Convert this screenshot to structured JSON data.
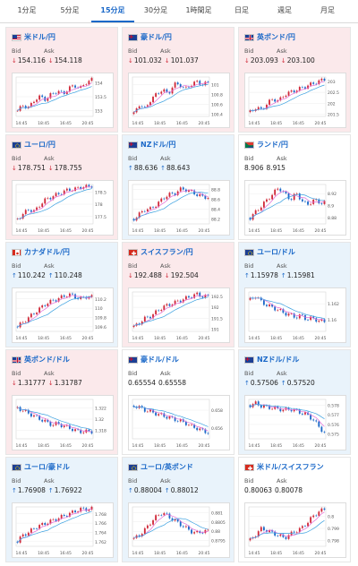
{
  "tabs": [
    {
      "label": "1分足",
      "active": false
    },
    {
      "label": "5分足",
      "active": false
    },
    {
      "label": "15分足",
      "active": true
    },
    {
      "label": "30分足",
      "active": false
    },
    {
      "label": "1時間足",
      "active": false
    },
    {
      "label": "日足",
      "active": false
    },
    {
      "label": "週足",
      "active": false
    },
    {
      "label": "月足",
      "active": false
    }
  ],
  "labels": {
    "bid": "Bid",
    "ask": "Ask"
  },
  "colors": {
    "accent": "#1a68c8",
    "up_bg": "#e9f3fb",
    "down_bg": "#fbe9eb",
    "up": "#1a68c8",
    "down": "#d02a3a"
  },
  "chart_data": [
    {
      "type": "candlestick",
      "pair": "米ドル/円",
      "flag": "us",
      "dir": "down",
      "bid": "154.116",
      "ask": "154.118",
      "x": [
        "14:45",
        "18:45",
        "16:45",
        "20:45"
      ],
      "yticks": [
        "154",
        "153.5",
        "153"
      ],
      "ylim": [
        152.8,
        154.2
      ],
      "trend": [
        153.0,
        153.2,
        153.1,
        153.4,
        153.5,
        153.4,
        153.6,
        153.7,
        153.6,
        153.8,
        153.9,
        153.8,
        154.0,
        154.1
      ]
    },
    {
      "type": "candlestick",
      "pair": "豪ドル/円",
      "flag": "au",
      "dir": "down",
      "bid": "101.032",
      "ask": "101.037",
      "x": [
        "14:45",
        "18:45",
        "16:45",
        "20:45"
      ],
      "yticks": [
        "101",
        "100.8",
        "100.6",
        "100.4"
      ],
      "ylim": [
        100.35,
        101.15
      ],
      "trend": [
        100.4,
        100.6,
        100.5,
        100.7,
        100.8,
        100.9,
        100.8,
        101.0,
        101.0,
        100.9,
        101.0,
        101.05,
        101.0,
        101.03
      ]
    },
    {
      "type": "candlestick",
      "pair": "英ポンド/円",
      "flag": "gb",
      "dir": "down",
      "bid": "203.093",
      "ask": "203.100",
      "x": [
        "14:45",
        "18:45",
        "16:45",
        "20:45"
      ],
      "yticks": [
        "203",
        "202.5",
        "202",
        "201.5"
      ],
      "ylim": [
        201.4,
        203.2
      ],
      "trend": [
        201.6,
        201.8,
        201.7,
        202.0,
        202.2,
        202.1,
        202.4,
        202.5,
        202.6,
        202.7,
        202.8,
        202.9,
        203.0,
        203.1
      ]
    },
    {
      "type": "candlestick",
      "pair": "ユーロ/円",
      "flag": "eu",
      "dir": "down",
      "bid": "178.751",
      "ask": "178.755",
      "x": [
        "14:45",
        "18:45",
        "16:45",
        "20:45"
      ],
      "yticks": [
        "178.5",
        "178",
        "177.5"
      ],
      "ylim": [
        177.2,
        178.8
      ],
      "trend": [
        177.4,
        177.6,
        177.8,
        177.7,
        178.0,
        178.2,
        178.3,
        178.4,
        178.5,
        178.6,
        178.6,
        178.7,
        178.7,
        178.75
      ]
    },
    {
      "type": "candlestick",
      "pair": "NZドル/円",
      "flag": "nz",
      "dir": "up",
      "bid": "88.636",
      "ask": "88.643",
      "x": [
        "14:45",
        "18:45",
        "16:45",
        "20:45"
      ],
      "yticks": [
        "88.8",
        "88.6",
        "88.4",
        "88.2"
      ],
      "ylim": [
        88.1,
        88.9
      ],
      "trend": [
        88.2,
        88.3,
        88.4,
        88.4,
        88.5,
        88.6,
        88.7,
        88.7,
        88.8,
        88.8,
        88.75,
        88.7,
        88.65,
        88.64
      ]
    },
    {
      "type": "candlestick",
      "pair": "ランド/円",
      "flag": "za",
      "dir": "flat",
      "bid": "8.906",
      "ask": "8.915",
      "x": [
        "14:45",
        "18:45",
        "16:45",
        "20:45"
      ],
      "yticks": [
        "8.92",
        "8.9",
        "8.88"
      ],
      "ylim": [
        8.87,
        8.935
      ],
      "trend": [
        8.88,
        8.89,
        8.9,
        8.91,
        8.92,
        8.93,
        8.92,
        8.91,
        8.92,
        8.91,
        8.9,
        8.91,
        8.905,
        8.906
      ]
    },
    {
      "type": "candlestick",
      "pair": "カナダドル/円",
      "flag": "ca",
      "dir": "up",
      "bid": "110.242",
      "ask": "110.248",
      "x": [
        "14:45",
        "18:45",
        "16:45",
        "20:45"
      ],
      "yticks": [
        "110.2",
        "110",
        "109.8",
        "109.6"
      ],
      "ylim": [
        109.5,
        110.35
      ],
      "trend": [
        109.6,
        109.7,
        109.8,
        109.9,
        110.0,
        110.1,
        110.15,
        110.2,
        110.25,
        110.3,
        110.25,
        110.2,
        110.25,
        110.24
      ]
    },
    {
      "type": "candlestick",
      "pair": "スイスフラン/円",
      "flag": "ch",
      "dir": "down",
      "bid": "192.488",
      "ask": "192.504",
      "x": [
        "14:45",
        "18:45",
        "16:45",
        "20:45"
      ],
      "yticks": [
        "192.5",
        "192",
        "191.5",
        "191"
      ],
      "ylim": [
        190.9,
        192.7
      ],
      "trend": [
        191.1,
        191.3,
        191.5,
        191.6,
        191.8,
        192.0,
        192.1,
        192.2,
        192.3,
        192.4,
        192.5,
        192.6,
        192.5,
        192.49
      ]
    },
    {
      "type": "candlestick",
      "pair": "ユーロ/ドル",
      "flag": "eu",
      "dir": "up",
      "bid": "1.15978",
      "ask": "1.15981",
      "x": [
        "14:45",
        "18:45",
        "16:45",
        "20:45"
      ],
      "yticks": [
        "1.162",
        "1.16"
      ],
      "ylim": [
        1.1585,
        1.1635
      ],
      "trend": [
        1.1625,
        1.163,
        1.1622,
        1.1618,
        1.1615,
        1.1612,
        1.1608,
        1.1606,
        1.1603,
        1.1605,
        1.16,
        1.1602,
        1.1598,
        1.1598
      ]
    },
    {
      "type": "candlestick",
      "pair": "英ポンド/ドル",
      "flag": "gb",
      "dir": "down",
      "bid": "1.31777",
      "ask": "1.31787",
      "x": [
        "14:45",
        "18:45",
        "16:45",
        "20:45"
      ],
      "yticks": [
        "1.322",
        "1.32",
        "1.318"
      ],
      "ylim": [
        1.3165,
        1.3235
      ],
      "trend": [
        1.322,
        1.3215,
        1.321,
        1.3205,
        1.32,
        1.3195,
        1.319,
        1.3192,
        1.3188,
        1.3185,
        1.318,
        1.3178,
        1.3178,
        1.3178
      ]
    },
    {
      "type": "candlestick",
      "pair": "豪ドル/ドル",
      "flag": "au",
      "dir": "flat",
      "bid": "0.65554",
      "ask": "0.65558",
      "x": [
        "14:45",
        "18:45",
        "16:45",
        "20:45"
      ],
      "yticks": [
        "0.658",
        "0.656"
      ],
      "ylim": [
        0.6548,
        0.6592
      ],
      "trend": [
        0.6585,
        0.6583,
        0.658,
        0.6578,
        0.6576,
        0.6574,
        0.6572,
        0.657,
        0.6568,
        0.6566,
        0.6562,
        0.656,
        0.6557,
        0.6555
      ]
    },
    {
      "type": "candlestick",
      "pair": "NZドル/ドル",
      "flag": "nz",
      "dir": "up",
      "bid": "0.57506",
      "ask": "0.57520",
      "x": [
        "14:45",
        "18:45",
        "16:45",
        "20:45"
      ],
      "yticks": [
        "0.578",
        "0.577",
        "0.576",
        "0.575"
      ],
      "ylim": [
        0.5745,
        0.5786
      ],
      "trend": [
        0.578,
        0.5782,
        0.5779,
        0.5778,
        0.5777,
        0.5776,
        0.5775,
        0.5776,
        0.5774,
        0.5772,
        0.577,
        0.5765,
        0.5758,
        0.5751
      ]
    },
    {
      "type": "candlestick",
      "pair": "ユーロ/豪ドル",
      "flag": "eu",
      "dir": "up",
      "bid": "1.76908",
      "ask": "1.76922",
      "x": [
        "14:45",
        "18:45",
        "16:45",
        "20:45"
      ],
      "yticks": [
        "1.768",
        "1.766",
        "1.764",
        "1.762"
      ],
      "ylim": [
        1.761,
        1.7695
      ],
      "trend": [
        1.762,
        1.7635,
        1.764,
        1.765,
        1.7655,
        1.766,
        1.7665,
        1.767,
        1.7675,
        1.768,
        1.7685,
        1.769,
        1.769,
        1.7691
      ]
    },
    {
      "type": "candlestick",
      "pair": "ユーロ/英ポンド",
      "flag": "eu",
      "dir": "up",
      "bid": "0.88004",
      "ask": "0.88012",
      "x": [
        "14:45",
        "18:45",
        "16:45",
        "20:45"
      ],
      "yticks": [
        "0.881",
        "0.8805",
        "0.88",
        "0.8795"
      ],
      "ylim": [
        0.8792,
        0.8813
      ],
      "trend": [
        0.8796,
        0.8798,
        0.8801,
        0.8805,
        0.8808,
        0.881,
        0.8808,
        0.8806,
        0.8804,
        0.8802,
        0.88,
        0.8799,
        0.88,
        0.88
      ]
    },
    {
      "type": "candlestick",
      "pair": "米ドル/スイスフラン",
      "flag": "ch",
      "dir": "flat",
      "bid": "0.80063",
      "ask": "0.80078",
      "x": [
        "14:45",
        "18:45",
        "16:45",
        "20:45"
      ],
      "yticks": [
        "0.8",
        "0.799",
        "0.798"
      ],
      "ylim": [
        0.7975,
        0.8008
      ],
      "trend": [
        0.798,
        0.7985,
        0.799,
        0.7988,
        0.7986,
        0.7984,
        0.7982,
        0.7985,
        0.7988,
        0.799,
        0.7995,
        0.8,
        0.8004,
        0.8006
      ]
    }
  ]
}
